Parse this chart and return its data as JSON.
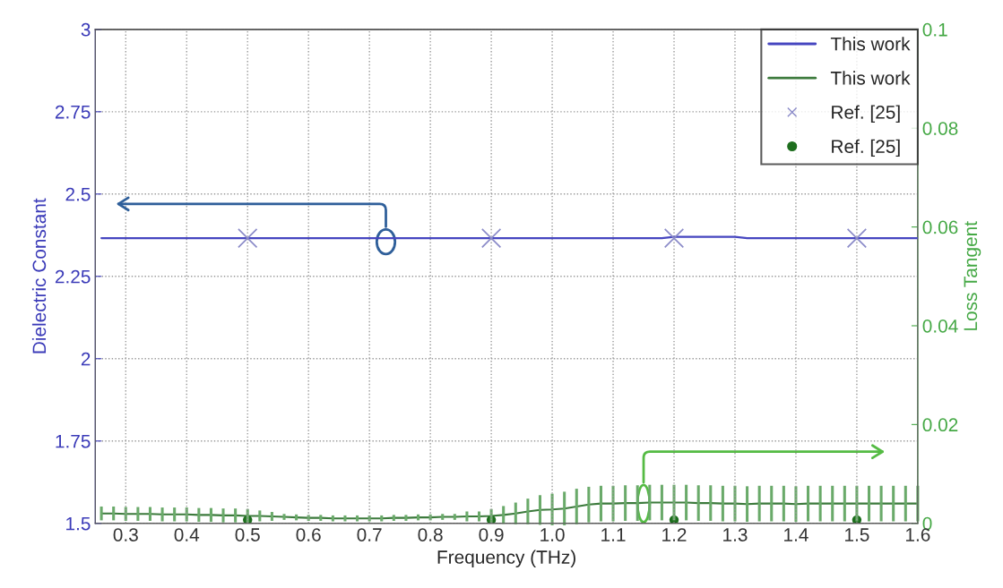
{
  "chart_data": {
    "type": "line",
    "xlabel": "Frequency (THz)",
    "ylabel": "Dielectric Constant",
    "y2label": "Loss Tangent",
    "xlim": [
      0.25,
      1.6
    ],
    "xticks": [
      0.3,
      0.4,
      0.5,
      0.6,
      0.7,
      0.8,
      0.9,
      {
        "value": 1.0,
        "label": "1.0"
      },
      1.1,
      1.2,
      1.3,
      1.4,
      1.5,
      1.6
    ],
    "ylim": [
      1.5,
      3
    ],
    "yticks": [
      1.5,
      1.75,
      2,
      2.25,
      2.5,
      2.75,
      3
    ],
    "y2lim": [
      0,
      0.1
    ],
    "y2ticks": [
      0,
      0.02,
      0.04,
      0.06,
      0.08,
      0.1
    ],
    "grid": true,
    "legend": "top right",
    "x": [
      0.26,
      0.28,
      0.3,
      0.32,
      0.34,
      0.36,
      0.38,
      0.4,
      0.42,
      0.44,
      0.46,
      0.48,
      0.5,
      0.52,
      0.54,
      0.56,
      0.58,
      0.6,
      0.62,
      0.64,
      0.66,
      0.68,
      0.7,
      0.72,
      0.74,
      0.76,
      0.78,
      0.8,
      0.82,
      0.84,
      0.86,
      0.88,
      0.9,
      0.92,
      0.94,
      0.96,
      0.98,
      1.0,
      1.02,
      1.04,
      1.06,
      1.08,
      1.1,
      1.12,
      1.14,
      1.16,
      1.18,
      1.2,
      1.22,
      1.24,
      1.26,
      1.28,
      1.3,
      1.32,
      1.34,
      1.36,
      1.38,
      1.4,
      1.42,
      1.44,
      1.46,
      1.48,
      1.5,
      1.52,
      1.54,
      1.56,
      1.58,
      1.6
    ],
    "series": [
      {
        "name": "This work",
        "color": "#4646c0",
        "marker": "none",
        "values": [
          2.366,
          2.366,
          2.366,
          2.366,
          2.366,
          2.366,
          2.366,
          2.366,
          2.366,
          2.366,
          2.366,
          2.366,
          2.366,
          2.366,
          2.366,
          2.366,
          2.366,
          2.366,
          2.366,
          2.366,
          2.366,
          2.366,
          2.366,
          2.366,
          2.366,
          2.366,
          2.366,
          2.366,
          2.366,
          2.366,
          2.366,
          2.366,
          2.366,
          2.366,
          2.366,
          2.366,
          2.366,
          2.366,
          2.366,
          2.366,
          2.366,
          2.366,
          2.366,
          2.366,
          2.366,
          2.366,
          2.366,
          2.37,
          2.37,
          2.37,
          2.37,
          2.37,
          2.37,
          2.366,
          2.366,
          2.366,
          2.366,
          2.366,
          2.366,
          2.366,
          2.366,
          2.366,
          2.366,
          2.366,
          2.366,
          2.366,
          2.366,
          2.366
        ]
      },
      {
        "name": "This work",
        "axis": "y2",
        "color": "#3c7a3c",
        "marker": "none",
        "values": [
          0.002,
          0.002,
          0.0019,
          0.0019,
          0.0019,
          0.0018,
          0.0018,
          0.0018,
          0.0017,
          0.0017,
          0.0016,
          0.0016,
          0.0015,
          0.0015,
          0.0014,
          0.0013,
          0.0012,
          0.0011,
          0.0011,
          0.001,
          0.001,
          0.001,
          0.001,
          0.001,
          0.0011,
          0.0011,
          0.0012,
          0.0012,
          0.0013,
          0.0013,
          0.0014,
          0.0014,
          0.0015,
          0.0017,
          0.002,
          0.0024,
          0.0027,
          0.0028,
          0.003,
          0.0034,
          0.0038,
          0.004,
          0.004,
          0.0041,
          0.0041,
          0.0042,
          0.0042,
          0.0042,
          0.0042,
          0.0041,
          0.0041,
          0.004,
          0.004,
          0.0039,
          0.004,
          0.004,
          0.004,
          0.0039,
          0.004,
          0.004,
          0.004,
          0.004,
          0.004,
          0.004,
          0.004,
          0.004,
          0.004,
          0.004
        ],
        "errors": [
          0.0014,
          0.0014,
          0.0014,
          0.0014,
          0.0014,
          0.0014,
          0.0014,
          0.0014,
          0.0014,
          0.0014,
          0.0014,
          0.0014,
          0.0014,
          0.0011,
          0.0009,
          0.0006,
          0.0006,
          0.0006,
          0.0006,
          0.0006,
          0.0006,
          0.0006,
          0.0006,
          0.0006,
          0.0006,
          0.0006,
          0.0006,
          0.0006,
          0.0006,
          0.0006,
          0.001,
          0.001,
          0.0014,
          0.0018,
          0.0022,
          0.0026,
          0.003,
          0.0032,
          0.0034,
          0.0036,
          0.0036,
          0.0036,
          0.0036,
          0.0036,
          0.0036,
          0.0036,
          0.0036,
          0.0036,
          0.0036,
          0.0036,
          0.0036,
          0.0036,
          0.0036,
          0.0036,
          0.0036,
          0.0036,
          0.0036,
          0.0036,
          0.0036,
          0.0036,
          0.0036,
          0.0036,
          0.0036,
          0.0036,
          0.0036,
          0.0036,
          0.0036,
          0.0036
        ]
      },
      {
        "name": "Ref. [25]",
        "type": "scatter",
        "color": "#8a8ac8",
        "marker": "cross",
        "x": [
          0.5,
          0.9,
          1.2,
          1.5
        ],
        "values": [
          2.366,
          2.366,
          2.366,
          2.366
        ]
      },
      {
        "name": "Ref. [25]",
        "type": "scatter",
        "axis": "y2",
        "color": "#1e6e1e",
        "marker": "circle",
        "x": [
          0.5,
          0.9,
          1.2,
          1.5
        ],
        "values": [
          0.0007,
          0.0007,
          0.0007,
          0.0007
        ]
      }
    ]
  }
}
